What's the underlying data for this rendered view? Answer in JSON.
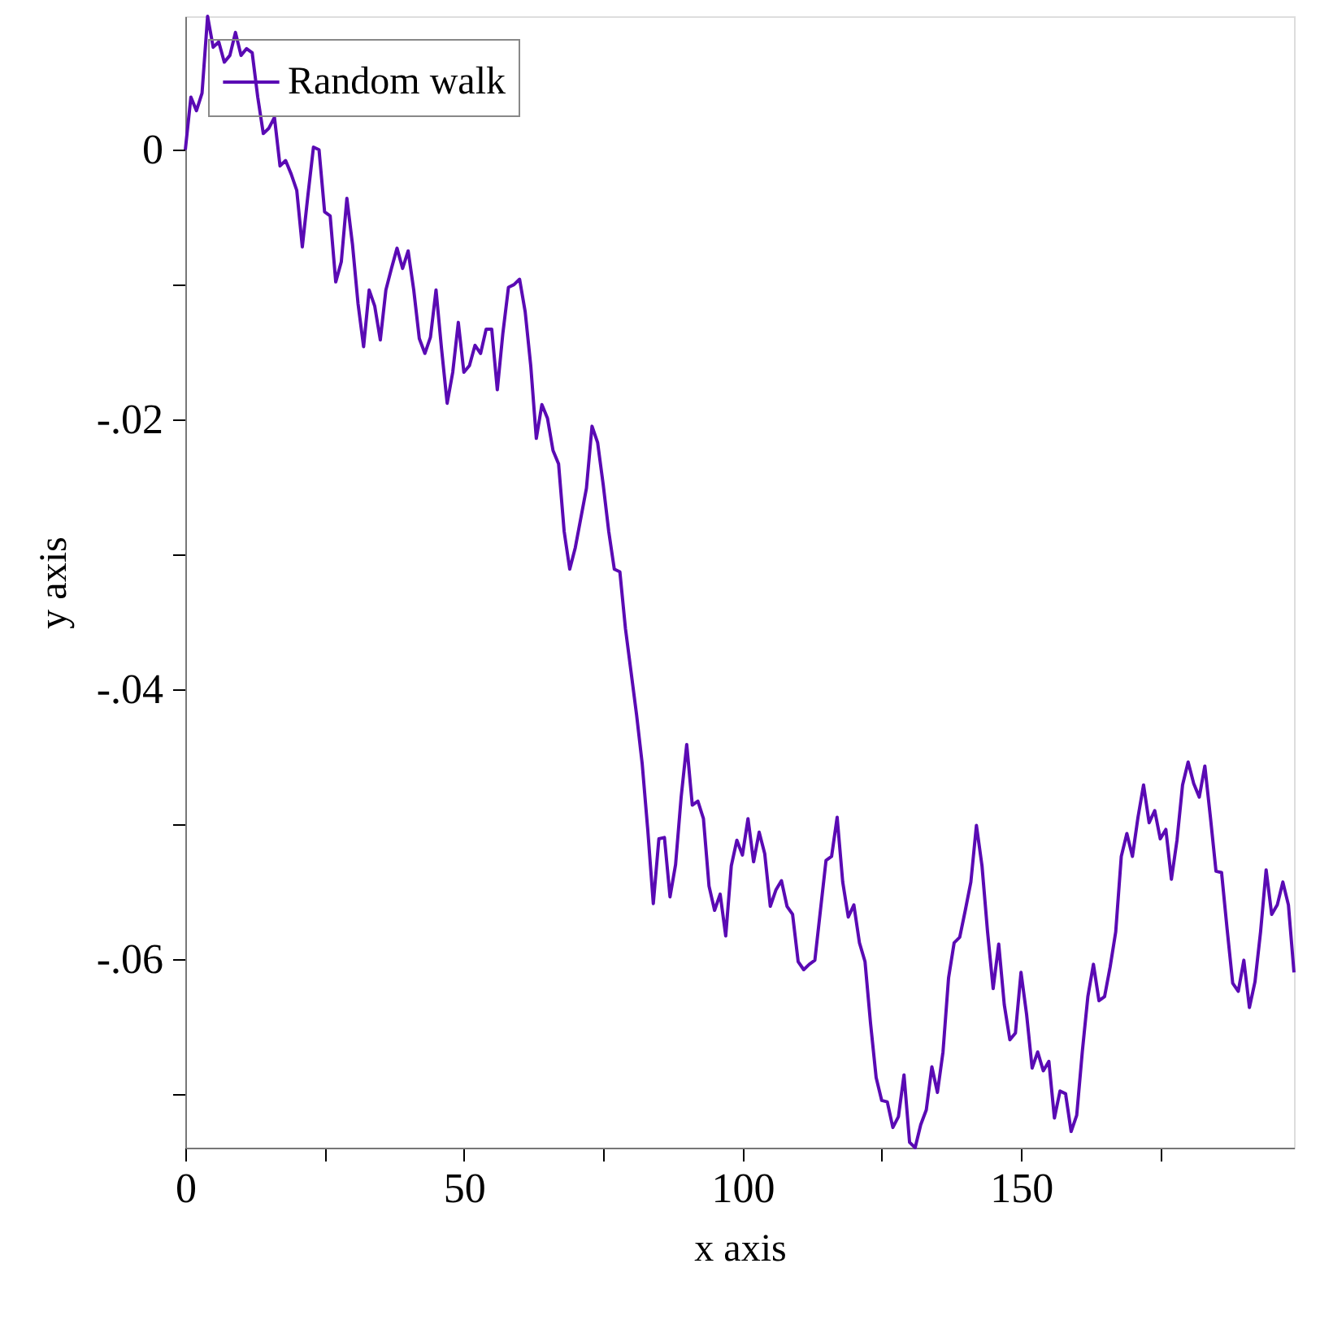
{
  "chart_data": {
    "type": "line",
    "xlabel": "x axis",
    "ylabel": "y axis",
    "xlim": [
      0,
      199
    ],
    "ylim": [
      -0.074,
      0.0099
    ],
    "xticks": [
      0,
      {
        "value": 25,
        "label": null
      },
      50,
      {
        "value": 75,
        "label": null
      },
      100,
      {
        "value": 125,
        "label": null
      },
      150,
      {
        "value": 175,
        "label": null
      }
    ],
    "yticks": [
      {
        "value": -0.07,
        "label": null
      },
      {
        "value": -0.06,
        "label": "-.06"
      },
      {
        "value": -0.05,
        "label": null
      },
      {
        "value": -0.04,
        "label": "-.04"
      },
      {
        "value": -0.03,
        "label": null
      },
      {
        "value": -0.02,
        "label": "-.02"
      },
      {
        "value": -0.01,
        "label": null
      },
      0
    ],
    "grid": false,
    "legend": "top left",
    "marker": "none",
    "line_style": "solid",
    "x": [
      0,
      1,
      2,
      3,
      4,
      5,
      6,
      7,
      8,
      9,
      10,
      11,
      12,
      13,
      14,
      15,
      16,
      17,
      18,
      19,
      20,
      21,
      22,
      23,
      24,
      25,
      26,
      27,
      28,
      29,
      30,
      31,
      32,
      33,
      34,
      35,
      36,
      37,
      38,
      39,
      40,
      41,
      42,
      43,
      44,
      45,
      46,
      47,
      48,
      49,
      50,
      51,
      52,
      53,
      54,
      55,
      56,
      57,
      58,
      59,
      60,
      61,
      62,
      63,
      64,
      65,
      66,
      67,
      68,
      69,
      70,
      72,
      73,
      74,
      75,
      76,
      77,
      78,
      79,
      80,
      81,
      82,
      83,
      84,
      85,
      86,
      87,
      88,
      89,
      90,
      91,
      92,
      93,
      94,
      95,
      96,
      97,
      98,
      99,
      100,
      101,
      102,
      103,
      104,
      105,
      106,
      107,
      108,
      109,
      110,
      111,
      112,
      113,
      114,
      115,
      116,
      117,
      118,
      119,
      120,
      121,
      122,
      123,
      124,
      125,
      126,
      127,
      128,
      129,
      130,
      131,
      132,
      133,
      134,
      135,
      136,
      137,
      138,
      139,
      140,
      141,
      142,
      143,
      144,
      145,
      146,
      147,
      148,
      149,
      150,
      151,
      152,
      153,
      154,
      155,
      156,
      157,
      158,
      159,
      160,
      161,
      162,
      163,
      164,
      165,
      166,
      167,
      168,
      169,
      170,
      171,
      172,
      173,
      174,
      175,
      176,
      177,
      178,
      179,
      180,
      181,
      182,
      183,
      184,
      185,
      186,
      187,
      188,
      189,
      190,
      191,
      192,
      193,
      194,
      195,
      196,
      197,
      198,
      199
    ],
    "series": [
      {
        "name": "Random walk",
        "color": "#5a0ab4",
        "values": [
          0,
          0.0039,
          0.0029,
          0.0042,
          0.0099,
          0.0076,
          0.008,
          0.0065,
          0.007,
          0.0087,
          0.007,
          0.0075,
          0.0072,
          0.0039,
          0.0012,
          0.0016,
          0.0024,
          -0.0012,
          -0.0008,
          -0.0018,
          -0.003,
          -0.0072,
          -0.0034,
          0.0002,
          0,
          -0.0046,
          -0.0049,
          -0.0098,
          -0.0083,
          -0.0036,
          -0.007,
          -0.0114,
          -0.0146,
          -0.0104,
          -0.0116,
          -0.0141,
          -0.0104,
          -0.0088,
          -0.0073,
          -0.0088,
          -0.0075,
          -0.0104,
          -0.014,
          -0.0151,
          -0.0139,
          -0.0104,
          -0.0148,
          -0.0188,
          -0.0165,
          -0.0128,
          -0.0165,
          -0.016,
          -0.0145,
          -0.0151,
          -0.0133,
          -0.0133,
          -0.0178,
          -0.0136,
          -0.0102,
          -0.01,
          -0.0096,
          -0.012,
          -0.016,
          -0.0214,
          -0.0189,
          -0.0199,
          -0.0223,
          -0.0233,
          -0.0283,
          -0.0311,
          -0.0295,
          -0.0251,
          -0.0205,
          -0.0217,
          -0.0248,
          -0.0283,
          -0.0311,
          -0.0313,
          -0.0355,
          -0.0387,
          -0.0419,
          -0.0455,
          -0.0504,
          -0.0559,
          -0.0511,
          -0.051,
          -0.0554,
          -0.053,
          -0.048,
          -0.0441,
          -0.0486,
          -0.0483,
          -0.0496,
          -0.0546,
          -0.0564,
          -0.0552,
          -0.0583,
          -0.0531,
          -0.0512,
          -0.0523,
          -0.0496,
          -0.0528,
          -0.0506,
          -0.0522,
          -0.0561,
          -0.0549,
          -0.0542,
          -0.0561,
          -0.0567,
          -0.0602,
          -0.0608,
          -0.0604,
          -0.0601,
          -0.0564,
          -0.0527,
          -0.0524,
          -0.0495,
          -0.0543,
          -0.0569,
          -0.056,
          -0.0588,
          -0.0602,
          -0.0648,
          -0.0688,
          -0.0705,
          -0.0706,
          -0.0725,
          -0.0717,
          -0.0686,
          -0.0736,
          -0.074,
          -0.0723,
          -0.0712,
          -0.068,
          -0.0699,
          -0.0669,
          -0.0614,
          -0.0588,
          -0.0584,
          -0.0564,
          -0.0543,
          -0.0501,
          -0.0531,
          -0.058,
          -0.0622,
          -0.0589,
          -0.0634,
          -0.066,
          -0.0655,
          -0.061,
          -0.0641,
          -0.0681,
          -0.0669,
          -0.0683,
          -0.0676,
          -0.0718,
          -0.0698,
          -0.07,
          -0.0728,
          -0.0716,
          -0.0669,
          -0.0628,
          -0.0604,
          -0.0631,
          -0.0628,
          -0.0606,
          -0.058,
          -0.0524,
          -0.0507,
          -0.0524,
          -0.0495,
          -0.0471,
          -0.0499,
          -0.049,
          -0.0511,
          -0.0504,
          -0.0541,
          -0.0512,
          -0.0471,
          -0.0454,
          -0.047,
          -0.048,
          -0.0457,
          -0.0495,
          -0.0535,
          -0.0536,
          -0.0578,
          -0.0618,
          -0.0624,
          -0.0601,
          -0.0636,
          -0.0617,
          -0.058,
          -0.0534,
          -0.0567,
          -0.056,
          -0.0543,
          -0.056,
          -0.061
        ]
      }
    ]
  }
}
